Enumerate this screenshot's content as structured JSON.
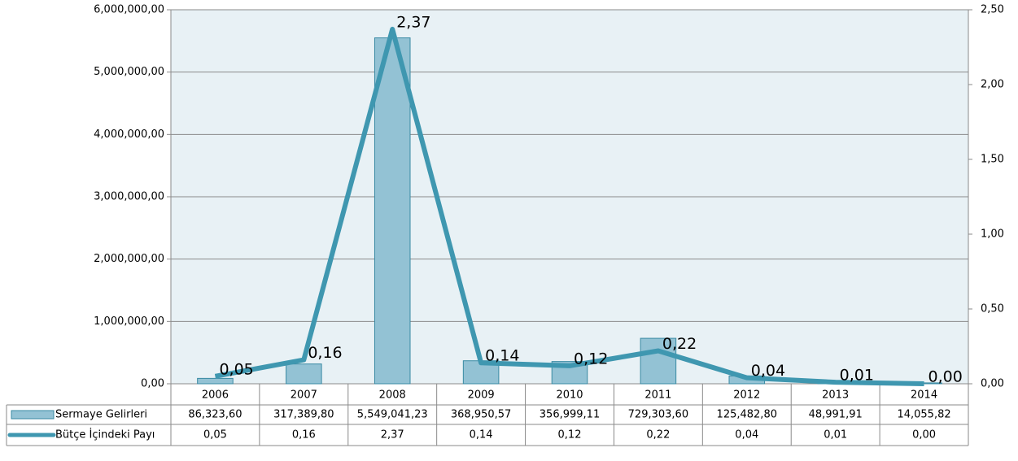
{
  "chart_data": {
    "type": "bar",
    "categories": [
      "2006",
      "2007",
      "2008",
      "2009",
      "2010",
      "2011",
      "2012",
      "2013",
      "2014"
    ],
    "series": [
      {
        "name": "Sermaye Gelirleri",
        "type": "bar",
        "color": "#93c2d4",
        "stroke": "#3a8aa3",
        "values": [
          86323.6,
          317389.8,
          5549041.23,
          368950.57,
          356999.11,
          729303.6,
          125482.8,
          48991.91,
          14055.82
        ],
        "value_labels": [
          "86,323,60",
          "317,389,80",
          "5,549,041,23",
          "368,950,57",
          "356,999,11",
          "729,303,60",
          "125,482,80",
          "48,991,91",
          "14,055,82"
        ]
      },
      {
        "name": "Bütçe İçindeki Payı",
        "type": "line",
        "axis": "y2",
        "color": "#3f97b0",
        "values": [
          0.05,
          0.16,
          2.37,
          0.14,
          0.12,
          0.22,
          0.04,
          0.01,
          0.0
        ],
        "value_labels": [
          "0,05",
          "0,16",
          "2,37",
          "0,14",
          "0,12",
          "0,22",
          "0,04",
          "0,01",
          "0,00"
        ]
      }
    ],
    "ylim": [
      0,
      6000000
    ],
    "yticks": [
      {
        "value": 0,
        "label": "0,00"
      },
      {
        "value": 1000000,
        "label": "1,000,000,00"
      },
      {
        "value": 2000000,
        "label": "2,000,000,00"
      },
      {
        "value": 3000000,
        "label": "3,000,000,00"
      },
      {
        "value": 4000000,
        "label": "4,000,000,00"
      },
      {
        "value": 5000000,
        "label": "5,000,000,00"
      },
      {
        "value": 6000000,
        "label": "6,000,000,00"
      }
    ],
    "y2lim": [
      0,
      2.5
    ],
    "y2ticks": [
      {
        "value": 0,
        "label": "0,00"
      },
      {
        "value": 0.5,
        "label": "0,50"
      },
      {
        "value": 1,
        "label": "1,00"
      },
      {
        "value": 1.5,
        "label": "1,50"
      },
      {
        "value": 2,
        "label": "2,00"
      },
      {
        "value": 2.5,
        "label": "2,50"
      }
    ],
    "grid": true,
    "legend": "table"
  }
}
